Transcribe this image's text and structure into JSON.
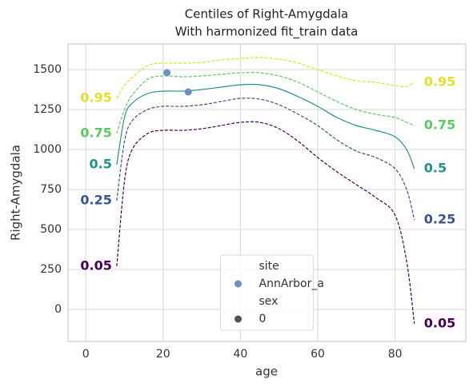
{
  "chart_data": {
    "type": "line",
    "title": "Centiles of Right-Amygdala",
    "subtitle": "With harmonized fit_train data",
    "x_label": "age",
    "y_label": "Right-Amygdala",
    "xlim": [
      -4.6,
      98.3
    ],
    "ylim": [
      -200,
      1660
    ],
    "xticks": [
      0,
      20,
      40,
      60,
      80
    ],
    "yticks": [
      0,
      250,
      500,
      750,
      1000,
      1250,
      1500
    ],
    "grid": true,
    "x": [
      8,
      10,
      12,
      16,
      20,
      25,
      30,
      35,
      40,
      45,
      50,
      55,
      60,
      65,
      70,
      75,
      80,
      83,
      85
    ],
    "series": [
      {
        "name": "0.05",
        "color": "#440154",
        "style": "dashed",
        "values": [
          270,
          800,
          1000,
          1100,
          1120,
          1120,
          1130,
          1150,
          1170,
          1170,
          1130,
          1050,
          950,
          860,
          780,
          700,
          590,
          300,
          -90
        ]
      },
      {
        "name": "0.25",
        "color": "#3b528b",
        "style": "dashed",
        "values": [
          680,
          1050,
          1180,
          1250,
          1270,
          1270,
          1280,
          1300,
          1320,
          1315,
          1280,
          1220,
          1150,
          1060,
          990,
          950,
          880,
          750,
          560
        ]
      },
      {
        "name": "0.5",
        "color": "#21918c",
        "style": "solid",
        "values": [
          905,
          1200,
          1290,
          1350,
          1365,
          1365,
          1375,
          1390,
          1405,
          1405,
          1380,
          1330,
          1270,
          1200,
          1150,
          1120,
          1080,
          1000,
          880
        ]
      },
      {
        "name": "0.75",
        "color": "#5ec962",
        "style": "dashed",
        "values": [
          1100,
          1250,
          1340,
          1440,
          1460,
          1455,
          1460,
          1470,
          1480,
          1480,
          1460,
          1420,
          1360,
          1300,
          1250,
          1220,
          1200,
          1170,
          1150
        ]
      },
      {
        "name": "0.95",
        "color": "#dfe22a",
        "style": "dashed",
        "values": [
          1320,
          1400,
          1450,
          1525,
          1540,
          1540,
          1545,
          1560,
          1570,
          1575,
          1565,
          1540,
          1500,
          1460,
          1430,
          1420,
          1400,
          1395,
          1420
        ]
      }
    ],
    "scatter": {
      "x": [
        21,
        26.5
      ],
      "values": [
        1480,
        1360
      ],
      "color": "#6b8fc0"
    },
    "legend": {
      "corner": "lower center",
      "groups": [
        {
          "title": "site",
          "entries": [
            {
              "label": "AnnArbor_a",
              "color": "#6b8fc0"
            }
          ]
        },
        {
          "title": "sex",
          "entries": [
            {
              "label": "0",
              "color": "#555555"
            }
          ]
        }
      ]
    }
  }
}
